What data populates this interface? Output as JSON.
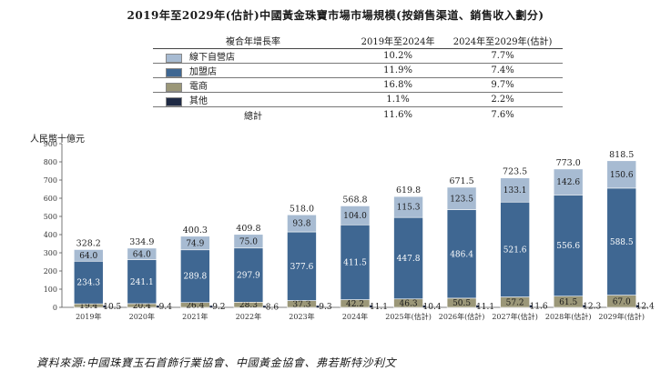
{
  "title": "2019年至2029年(估計)中國黃金珠寶市場市場規模(按銷售渠道、銷售收入劃分)",
  "cagr_table": {
    "header": [
      "複合年增長率",
      "2019年至2024年",
      "2024年至2029年(估計)"
    ],
    "rows": [
      {
        "channel": "線下自營店",
        "color": "#a7bbd2",
        "v1": "10.2%",
        "v2": "7.7%"
      },
      {
        "channel": "加盟店",
        "color": "#3f6792",
        "v1": "11.9%",
        "v2": "7.4%"
      },
      {
        "channel": "電商",
        "color": "#9b9778",
        "v1": "16.8%",
        "v2": "9.7%"
      },
      {
        "channel": "其他",
        "color": "#1f2a44",
        "v1": "1.1%",
        "v2": "2.2%"
      }
    ],
    "total": {
      "channel": "總計",
      "v1": "11.6%",
      "v2": "7.6%"
    }
  },
  "source": "資料來源:中國珠寶玉石首飾行業協會、中國黃金協會、弗若斯特沙利文",
  "chart_data": {
    "type": "bar",
    "stacked": true,
    "ylabel": "人民幣十億元",
    "ylim": [
      0,
      900
    ],
    "yticks": [
      0,
      100,
      200,
      300,
      400,
      500,
      600,
      700,
      800,
      900
    ],
    "categories": [
      "2019年",
      "2020年",
      "2021年",
      "2022年",
      "2023年",
      "2024年",
      "2025年(估計)",
      "2026年(估計)",
      "2027年(估計)",
      "2028年(估計)",
      "2029年(估計)"
    ],
    "series": [
      {
        "name": "電商",
        "values": [
          19.4,
          20.4,
          26.4,
          28.3,
          37.3,
          42.2,
          46.3,
          50.5,
          57.2,
          61.5,
          67.0
        ],
        "color": "#9b9778"
      },
      {
        "name": "加盟店",
        "values": [
          234.3,
          241.1,
          289.8,
          297.9,
          377.6,
          411.5,
          447.8,
          486.4,
          521.6,
          556.6,
          588.5
        ],
        "color": "#3f6792"
      },
      {
        "name": "線下自營店",
        "values": [
          64.0,
          64.0,
          74.9,
          75.0,
          93.8,
          104.0,
          115.3,
          123.5,
          133.1,
          142.6,
          150.6
        ],
        "color": "#a7bbd2"
      },
      {
        "name": "其他",
        "values": [
          10.5,
          9.4,
          9.2,
          8.6,
          9.3,
          11.1,
          10.4,
          11.1,
          11.6,
          12.3,
          12.4
        ],
        "color": "#1f2a44"
      }
    ],
    "totals": [
      328.2,
      334.9,
      400.3,
      409.8,
      518.0,
      568.8,
      619.8,
      671.5,
      723.5,
      773.0,
      818.5
    ],
    "segment_labels": {
      "電商": [
        "19.4",
        "20.4",
        "26.4",
        "28.3",
        "37.3",
        "42.2",
        "46.3",
        "50.5",
        "57.2",
        "61.5",
        "67.0"
      ],
      "加盟店": [
        "234.3",
        "241.1",
        "289.8",
        "297.9",
        "377.6",
        "411.5",
        "447.8",
        "486.4",
        "521.6",
        "556.6",
        "588.5"
      ],
      "線下自營店": [
        "64.0",
        "64.0",
        "74.9",
        "75.0",
        "93.8",
        "104.0",
        "115.3",
        "123.5",
        "133.1",
        "142.6",
        "150.6"
      ],
      "其他": [
        "10.5",
        "9.4",
        "9.2",
        "8.6",
        "9.3",
        "11.1",
        "10.4",
        "11.1",
        "11.6",
        "12.3",
        "12.4"
      ]
    },
    "total_labels": [
      "328.2",
      "334.9",
      "400.3",
      "409.8",
      "518.0",
      "568.8",
      "619.8",
      "671.5",
      "723.5",
      "773.0",
      "818.5"
    ],
    "grid": false,
    "legend": "top"
  }
}
